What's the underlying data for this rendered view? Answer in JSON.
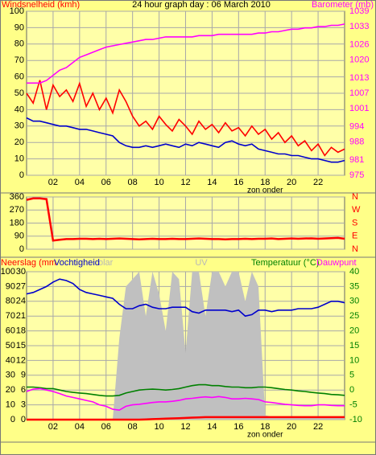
{
  "chart_data": [
    {
      "type": "line",
      "title": "24 hour graph day : 06 March 2010",
      "ylabel": "Windsnelheid (kmh)",
      "y2label": "Barometer (mb)",
      "xlim": [
        0,
        24
      ],
      "xticks": [
        {
          "value": 2,
          "label": "02"
        },
        {
          "value": 4,
          "label": "04"
        },
        {
          "value": 6,
          "label": "06"
        },
        {
          "value": 8,
          "label": "08"
        },
        10,
        12,
        14,
        16,
        18,
        20,
        22
      ],
      "ylim": [
        0,
        100
      ],
      "yticks": [
        0,
        10,
        20,
        30,
        40,
        50,
        60,
        70,
        80,
        90,
        100
      ],
      "y2lim": [
        975,
        1039
      ],
      "y2ticks": [
        975,
        981,
        988,
        994,
        1001,
        1007,
        1013,
        1020,
        1026,
        1033,
        1039
      ],
      "grid": true,
      "annotations": [
        {
          "text": "zon onder",
          "x": 18
        }
      ],
      "x": [
        0,
        0.5,
        1,
        1.5,
        2,
        2.5,
        3,
        3.5,
        4,
        4.5,
        5,
        5.5,
        6,
        6.5,
        7,
        7.5,
        8,
        8.5,
        9,
        9.5,
        10,
        10.5,
        11,
        11.5,
        12,
        12.5,
        13,
        13.5,
        14,
        14.5,
        15,
        15.5,
        16,
        16.5,
        17,
        17.5,
        18,
        18.5,
        19,
        19.5,
        20,
        20.5,
        21,
        21.5,
        22,
        22.5,
        23,
        23.5,
        24
      ],
      "series": [
        {
          "color": "#ff0000",
          "axis": "y",
          "values": [
            50,
            44,
            58,
            40,
            55,
            48,
            52,
            45,
            56,
            42,
            50,
            40,
            47,
            38,
            52,
            45,
            36,
            30,
            33,
            28,
            36,
            31,
            27,
            34,
            30,
            25,
            33,
            28,
            31,
            26,
            32,
            27,
            29,
            24,
            30,
            25,
            28,
            22,
            26,
            20,
            24,
            18,
            21,
            15,
            19,
            12,
            17,
            14,
            16
          ]
        },
        {
          "color": "#0000cc",
          "axis": "y",
          "values": [
            35,
            33,
            33,
            32,
            31,
            30,
            30,
            29,
            28,
            28,
            27,
            26,
            25,
            24,
            20,
            18,
            17,
            17,
            18,
            17,
            18,
            19,
            18,
            17,
            19,
            18,
            20,
            19,
            18,
            17,
            20,
            21,
            19,
            18,
            19,
            16,
            15,
            14,
            13,
            13,
            12,
            12,
            11,
            10,
            10,
            9,
            8,
            8,
            9
          ]
        },
        {
          "color": "#ff00ff",
          "axis": "y2",
          "values": [
            1011,
            1011,
            1011,
            1012,
            1014,
            1016,
            1017,
            1019,
            1021,
            1022,
            1023,
            1024,
            1025,
            1025.5,
            1026,
            1026.5,
            1027,
            1027.5,
            1028,
            1028,
            1028.5,
            1029,
            1029,
            1029,
            1029,
            1029,
            1029.5,
            1029.5,
            1029.5,
            1030,
            1030,
            1030,
            1030,
            1030,
            1030,
            1030.5,
            1030.5,
            1031,
            1031,
            1031.5,
            1032,
            1032,
            1032.5,
            1032.5,
            1033,
            1033,
            1033.5,
            1033.5,
            1034
          ]
        }
      ]
    },
    {
      "type": "line",
      "xlim": [
        0,
        24
      ],
      "xticks": [
        2,
        4,
        6,
        8,
        10,
        12,
        14,
        16,
        18,
        20,
        22
      ],
      "xtick_labels": false,
      "ylim": [
        0,
        360
      ],
      "yticks": [
        0,
        90,
        180,
        270,
        360
      ],
      "y2lim": [
        0,
        360
      ],
      "y2ticks": [
        {
          "value": 0,
          "label": "N"
        },
        {
          "value": 90,
          "label": "E"
        },
        {
          "value": 180,
          "label": "S"
        },
        {
          "value": 270,
          "label": "W"
        },
        {
          "value": 360,
          "label": "N"
        }
      ],
      "grid": true,
      "x": [
        0,
        0.5,
        1,
        1.5,
        2,
        2.5,
        3,
        3.5,
        4,
        4.5,
        5,
        5.5,
        6,
        6.5,
        7,
        7.5,
        8,
        8.5,
        9,
        9.5,
        10,
        10.5,
        11,
        11.5,
        12,
        12.5,
        13,
        13.5,
        14,
        14.5,
        15,
        15.5,
        16,
        16.5,
        17,
        17.5,
        18,
        18.5,
        19,
        19.5,
        20,
        20.5,
        21,
        21.5,
        22,
        22.5,
        23,
        23.5,
        24
      ],
      "series": [
        {
          "color": "#ff0000",
          "axis": "y",
          "values": [
            340,
            350,
            350,
            345,
            60,
            65,
            70,
            70,
            72,
            72,
            70,
            72,
            70,
            72,
            74,
            72,
            70,
            68,
            70,
            72,
            70,
            70,
            72,
            70,
            70,
            72,
            74,
            72,
            70,
            70,
            68,
            70,
            70,
            72,
            70,
            72,
            72,
            74,
            70,
            72,
            74,
            72,
            74,
            75,
            72,
            74,
            76,
            78,
            72
          ]
        }
      ]
    },
    {
      "type": "line",
      "uv_label": "UV",
      "xlim": [
        0,
        24
      ],
      "xticks": [
        {
          "value": 2,
          "label": "02"
        },
        {
          "value": 4,
          "label": "04"
        },
        {
          "value": 6,
          "label": "06"
        },
        {
          "value": 8,
          "label": "08"
        },
        10,
        12,
        14,
        16,
        18,
        20,
        22
      ],
      "ylim": [
        0,
        100
      ],
      "yticks": [
        0,
        10,
        20,
        30,
        40,
        50,
        60,
        70,
        80,
        90,
        100
      ],
      "y3lim": [
        0,
        30
      ],
      "y3ticks": [
        0,
        3,
        6,
        9,
        12,
        15,
        18,
        21,
        24,
        27,
        30
      ],
      "y2lim": [
        -10,
        40
      ],
      "y2ticks": [
        -10,
        -5,
        0,
        5,
        10,
        15,
        20,
        25,
        30,
        35,
        40
      ],
      "grid": true,
      "annotations": [
        {
          "text": "zon onder",
          "x": 18
        }
      ],
      "x": [
        0,
        0.5,
        1,
        1.5,
        2,
        2.5,
        3,
        3.5,
        4,
        4.5,
        5,
        5.5,
        6,
        6.5,
        7,
        7.5,
        8,
        8.5,
        9,
        9.5,
        10,
        10.5,
        11,
        11.5,
        12,
        12.5,
        13,
        13.5,
        14,
        14.5,
        15,
        15.5,
        16,
        16.5,
        17,
        17.5,
        18,
        18.5,
        19,
        19.5,
        20,
        20.5,
        21,
        21.5,
        22,
        22.5,
        23,
        23.5,
        24
      ],
      "series": [
        {
          "name": "olar",
          "color": "#c0c0c0",
          "axis": "y",
          "kind": "area",
          "values": [
            0,
            0,
            0,
            0,
            0,
            0,
            0,
            0,
            0,
            0,
            0,
            0,
            0,
            0,
            55,
            90,
            95,
            100,
            70,
            100,
            85,
            60,
            100,
            95,
            45,
            100,
            100,
            70,
            100,
            100,
            90,
            100,
            100,
            80,
            100,
            90,
            3,
            2,
            2,
            2,
            2,
            2,
            2,
            2,
            2,
            2,
            2,
            2,
            2
          ]
        },
        {
          "name": "Neerslag (mm",
          "color": "#ff0000",
          "axis": "y3",
          "values": [
            0,
            0,
            0,
            0,
            0,
            0,
            0,
            0,
            0,
            0,
            0,
            0,
            0,
            0,
            0,
            0,
            0,
            0,
            0.05,
            0.1,
            0.15,
            0.2,
            0.25,
            0.3,
            0.35,
            0.4,
            0.45,
            0.5,
            0.5,
            0.5,
            0.5,
            0.5,
            0.5,
            0.5,
            0.5,
            0.5,
            0.5,
            0.5,
            0.5,
            0.5,
            0.5,
            0.5,
            0.5,
            0.5,
            0.5,
            0.5,
            0.5,
            0.5,
            0.5
          ]
        },
        {
          "name": "Vochtigheid",
          "color": "#0000cc",
          "axis": "y",
          "values": [
            85,
            86,
            88,
            90,
            93,
            95,
            94,
            92,
            88,
            86,
            85,
            84,
            83,
            82,
            78,
            75,
            75,
            77,
            78,
            76,
            75,
            75,
            76,
            76,
            76,
            73,
            72,
            74,
            74,
            74,
            74,
            73,
            74,
            70,
            71,
            74,
            74,
            73,
            74,
            74,
            74,
            75,
            75,
            75,
            76,
            78,
            80,
            80,
            79
          ]
        },
        {
          "name": "Temperatuur (°C)",
          "color": "#008000",
          "axis": "y2",
          "values": [
            1,
            1,
            0.8,
            0.5,
            0.5,
            0,
            -0.5,
            -0.8,
            -1,
            -1.2,
            -1.5,
            -1.8,
            -2,
            -2,
            -1.8,
            -1,
            -0.5,
            0,
            0.2,
            0.3,
            0.2,
            0,
            0.2,
            0.5,
            1,
            1.5,
            1.8,
            1.8,
            1.5,
            1.5,
            1.2,
            1,
            1,
            0.8,
            0.8,
            1,
            1,
            0.8,
            0.5,
            0.2,
            0,
            -0.3,
            -0.5,
            -0.8,
            -1,
            -1.2,
            -1.5,
            -1.6,
            -1.8
          ]
        },
        {
          "name": "Dauwpunt",
          "color": "#ff00ff",
          "axis": "y2",
          "values": [
            -0.5,
            0.3,
            0.5,
            0,
            -0.5,
            -1.2,
            -2,
            -2.5,
            -3,
            -3.5,
            -4,
            -5,
            -5.5,
            -6.5,
            -6.8,
            -5.5,
            -5,
            -4.8,
            -4.5,
            -4.2,
            -4,
            -4,
            -3.8,
            -3.5,
            -3,
            -2.8,
            -2.5,
            -2.3,
            -2.5,
            -2.2,
            -2.5,
            -3,
            -3,
            -2.8,
            -3,
            -3.2,
            -4,
            -4.2,
            -4.5,
            -4.8,
            -5,
            -5.2,
            -5.3,
            -5.3,
            -5,
            -5,
            -5.2,
            -5.3,
            -5.3
          ]
        }
      ]
    }
  ]
}
